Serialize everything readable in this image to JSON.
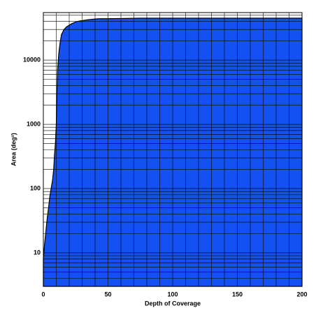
{
  "chart_data": {
    "type": "area",
    "x_label": "Depth of Coverage",
    "y_label": "Area (deg²)",
    "x": [
      0,
      1,
      2,
      3,
      4,
      5,
      6,
      7,
      8,
      8.6,
      9.3,
      10,
      10.5,
      11,
      12,
      13,
      14,
      16,
      18,
      22,
      26,
      34,
      42,
      60,
      75,
      100,
      150,
      200
    ],
    "series": [
      {
        "name": "Area",
        "color": "#1550f0",
        "values": [
          8,
          14,
          22,
          35,
          50,
          75,
          100,
          130,
          200,
          330,
          500,
          1000,
          3000,
          7000,
          13000,
          19000,
          25000,
          30000,
          33000,
          37000,
          40000,
          42500,
          44000,
          44500,
          45000,
          45000,
          45000,
          45000
        ]
      }
    ],
    "xlim": [
      0,
      200
    ],
    "xticks": [
      0,
      50,
      100,
      150,
      200
    ],
    "xminorticks": [
      10,
      20,
      30,
      40,
      60,
      70,
      80,
      90,
      110,
      120,
      130,
      140,
      160,
      170,
      180,
      190
    ],
    "ylim": [
      3,
      55000
    ],
    "log_y": true,
    "yticks": [
      10,
      100,
      1000,
      10000
    ],
    "yminorticks": [
      4,
      5,
      6,
      7,
      8,
      9,
      20,
      30,
      40,
      50,
      60,
      70,
      80,
      90,
      200,
      300,
      400,
      500,
      600,
      700,
      800,
      900,
      2000,
      3000,
      4000,
      5000,
      6000,
      7000,
      8000,
      9000,
      20000,
      30000,
      40000,
      50000
    ],
    "grid": true
  }
}
